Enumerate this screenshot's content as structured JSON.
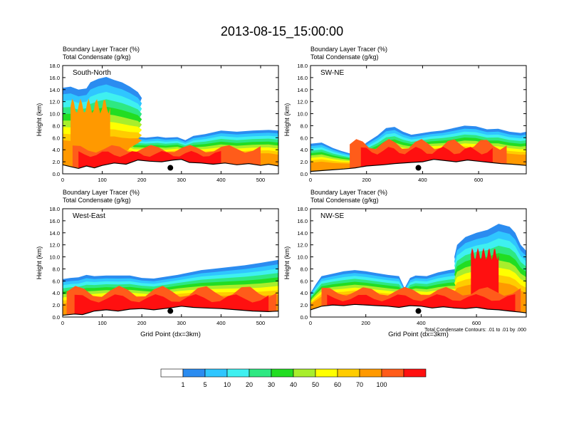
{
  "figure": {
    "title": "2013-08-15_15:00:00",
    "footnote": "Total Condensate Contours: .01 to .01 by .000"
  },
  "colors": {
    "levels": [
      "#ffffff",
      "#2b8cf0",
      "#2fc6ff",
      "#3ff0f0",
      "#2ee882",
      "#22dd22",
      "#a8ee2c",
      "#ffff00",
      "#ffcc00",
      "#ff9900",
      "#ff5c1a",
      "#ff1010"
    ],
    "terrain": "#000000",
    "outline": "#000000"
  },
  "colorbar": {
    "labels": [
      "1",
      "5",
      "10",
      "20",
      "30",
      "40",
      "50",
      "60",
      "70",
      "100"
    ]
  },
  "chart_data": [
    {
      "type": "heatmap",
      "panel_label": "South-North",
      "subtitle1": "Boundary Layer Tracer   (%)",
      "subtitle2": "Total Condensate   (g/kg)",
      "xlabel": "",
      "ylabel": "Height (km)",
      "xlim": [
        0,
        545
      ],
      "ylim": [
        0,
        18
      ],
      "xticks": [
        "0",
        "100",
        "200",
        "300",
        "400",
        "500"
      ],
      "xtick_values": [
        0,
        100,
        200,
        300,
        400,
        500
      ],
      "yticks": [
        "0.0",
        "2.0",
        "4.0",
        "6.0",
        "8.0",
        "10.0",
        "12.0",
        "14.0",
        "16.0",
        "18.0"
      ],
      "marker": {
        "x": 272,
        "y": 1.0
      },
      "terrain": [
        [
          0,
          1.5
        ],
        [
          20,
          1.2
        ],
        [
          40,
          0.9
        ],
        [
          60,
          1.3
        ],
        [
          80,
          1.0
        ],
        [
          100,
          1.4
        ],
        [
          130,
          1.8
        ],
        [
          160,
          1.6
        ],
        [
          190,
          2.3
        ],
        [
          220,
          2.1
        ],
        [
          250,
          2.0
        ],
        [
          280,
          2.3
        ],
        [
          300,
          2.4
        ],
        [
          320,
          1.9
        ],
        [
          350,
          1.8
        ],
        [
          380,
          1.6
        ],
        [
          410,
          1.8
        ],
        [
          440,
          1.5
        ],
        [
          470,
          1.7
        ],
        [
          500,
          1.4
        ],
        [
          520,
          1.6
        ],
        [
          545,
          1.3
        ]
      ],
      "top": [
        [
          0,
          14.3
        ],
        [
          20,
          14.5
        ],
        [
          40,
          14.0
        ],
        [
          60,
          14.2
        ],
        [
          70,
          15.2
        ],
        [
          90,
          15.8
        ],
        [
          110,
          16.1
        ],
        [
          130,
          15.6
        ],
        [
          150,
          15.2
        ],
        [
          170,
          14.5
        ],
        [
          190,
          13.6
        ],
        [
          200,
          12.6
        ],
        [
          190,
          11.0
        ],
        [
          170,
          9.6
        ],
        [
          160,
          7.8
        ],
        [
          180,
          6.2
        ],
        [
          210,
          6.0
        ],
        [
          240,
          6.2
        ],
        [
          260,
          6.0
        ],
        [
          290,
          6.1
        ],
        [
          310,
          5.6
        ],
        [
          330,
          6.3
        ],
        [
          360,
          6.6
        ],
        [
          400,
          7.2
        ],
        [
          440,
          7.0
        ],
        [
          480,
          7.2
        ],
        [
          520,
          7.3
        ],
        [
          545,
          7.2
        ]
      ],
      "cores": [
        {
          "x": [
            20,
            120
          ],
          "top": [
            10,
            12.5
          ],
          "level": 9
        },
        {
          "x": [
            25,
            500
          ],
          "top": [
            3.5,
            4.8
          ],
          "level": 10
        },
        {
          "x": [
            40,
            400
          ],
          "top": [
            2.8,
            3.8
          ],
          "level": 11
        }
      ]
    },
    {
      "type": "heatmap",
      "panel_label": "SW-NE",
      "subtitle1": "Boundary Layer Tracer   (%)",
      "subtitle2": "Total Condensate   (g/kg)",
      "xlabel": "",
      "ylabel": "Height (km)",
      "xlim": [
        0,
        770
      ],
      "ylim": [
        0,
        18
      ],
      "xticks": [
        "0",
        "200",
        "400",
        "600"
      ],
      "xtick_values": [
        0,
        200,
        400,
        600
      ],
      "yticks": [
        "0.0",
        "2.0",
        "4.0",
        "6.0",
        "8.0",
        "10.0",
        "12.0",
        "14.0",
        "16.0",
        "18.0"
      ],
      "marker": {
        "x": 385,
        "y": 1.0
      },
      "terrain": [
        [
          0,
          0.4
        ],
        [
          60,
          0.6
        ],
        [
          120,
          0.8
        ],
        [
          160,
          1.0
        ],
        [
          200,
          1.3
        ],
        [
          260,
          1.5
        ],
        [
          300,
          1.7
        ],
        [
          360,
          1.9
        ],
        [
          400,
          2.0
        ],
        [
          440,
          2.4
        ],
        [
          480,
          2.2
        ],
        [
          520,
          2.0
        ],
        [
          560,
          2.3
        ],
        [
          600,
          2.1
        ],
        [
          640,
          1.9
        ],
        [
          680,
          1.7
        ],
        [
          720,
          1.6
        ],
        [
          770,
          1.4
        ]
      ],
      "top": [
        [
          0,
          5.0
        ],
        [
          40,
          5.2
        ],
        [
          80,
          4.3
        ],
        [
          110,
          3.8
        ],
        [
          140,
          3.4
        ],
        [
          170,
          4.0
        ],
        [
          200,
          5.2
        ],
        [
          240,
          6.4
        ],
        [
          270,
          7.6
        ],
        [
          300,
          7.8
        ],
        [
          330,
          7.0
        ],
        [
          360,
          6.5
        ],
        [
          390,
          6.7
        ],
        [
          430,
          7.0
        ],
        [
          470,
          7.2
        ],
        [
          510,
          7.6
        ],
        [
          550,
          8.0
        ],
        [
          590,
          7.9
        ],
        [
          630,
          7.4
        ],
        [
          670,
          7.5
        ],
        [
          710,
          7.0
        ],
        [
          750,
          6.8
        ],
        [
          770,
          7.0
        ]
      ],
      "cores": [
        {
          "x": [
            140,
            700
          ],
          "top": [
            4.0,
            5.8
          ],
          "level": 10
        },
        {
          "x": [
            180,
            650
          ],
          "top": [
            3.2,
            4.5
          ],
          "level": 11
        }
      ]
    },
    {
      "type": "heatmap",
      "panel_label": "West-East",
      "subtitle1": "Boundary Layer Tracer   (%)",
      "subtitle2": "Total Condensate   (g/kg)",
      "xlabel": "Grid Point (dx=3km)",
      "ylabel": "Height (km)",
      "xlim": [
        0,
        545
      ],
      "ylim": [
        0,
        18
      ],
      "xticks": [
        "0",
        "100",
        "200",
        "300",
        "400",
        "500"
      ],
      "xtick_values": [
        0,
        100,
        200,
        300,
        400,
        500
      ],
      "yticks": [
        "0.0",
        "2.0",
        "4.0",
        "6.0",
        "8.0",
        "10.0",
        "12.0",
        "14.0",
        "16.0",
        "18.0"
      ],
      "marker": {
        "x": 272,
        "y": 1.0
      },
      "terrain": [
        [
          0,
          0.3
        ],
        [
          30,
          0.5
        ],
        [
          50,
          0.4
        ],
        [
          80,
          1.0
        ],
        [
          110,
          1.2
        ],
        [
          140,
          1.0
        ],
        [
          170,
          1.3
        ],
        [
          200,
          1.4
        ],
        [
          230,
          1.2
        ],
        [
          270,
          1.5
        ],
        [
          300,
          1.8
        ],
        [
          330,
          1.6
        ],
        [
          360,
          1.5
        ],
        [
          400,
          1.4
        ],
        [
          440,
          1.2
        ],
        [
          480,
          1.0
        ],
        [
          520,
          0.9
        ],
        [
          545,
          1.0
        ]
      ],
      "top": [
        [
          0,
          6.3
        ],
        [
          20,
          6.5
        ],
        [
          40,
          6.6
        ],
        [
          60,
          7.0
        ],
        [
          80,
          6.8
        ],
        [
          110,
          6.9
        ],
        [
          140,
          6.9
        ],
        [
          170,
          6.9
        ],
        [
          200,
          6.5
        ],
        [
          230,
          6.4
        ],
        [
          260,
          6.7
        ],
        [
          290,
          7.0
        ],
        [
          320,
          7.4
        ],
        [
          350,
          7.8
        ],
        [
          380,
          8.0
        ],
        [
          420,
          8.3
        ],
        [
          460,
          8.6
        ],
        [
          500,
          9.0
        ],
        [
          545,
          9.5
        ]
      ],
      "cores": [
        {
          "x": [
            10,
            540
          ],
          "top": [
            3.2,
            5.2
          ],
          "level": 10
        },
        {
          "x": [
            30,
            520
          ],
          "top": [
            2.4,
            3.8
          ],
          "level": 11
        }
      ]
    },
    {
      "type": "heatmap",
      "panel_label": "NW-SE",
      "subtitle1": "Boundary Layer Tracer   (%)",
      "subtitle2": "Total Condensate   (g/kg)",
      "xlabel": "Grid Point (dx=3km)",
      "ylabel": "Height (km)",
      "xlim": [
        0,
        780
      ],
      "ylim": [
        0,
        18
      ],
      "xticks": [
        "0",
        "200",
        "400",
        "600"
      ],
      "xtick_values": [
        0,
        200,
        400,
        600
      ],
      "yticks": [
        "0.0",
        "2.0",
        "4.0",
        "6.0",
        "8.0",
        "10.0",
        "12.0",
        "14.0",
        "16.0",
        "18.0"
      ],
      "marker": {
        "x": 390,
        "y": 1.0
      },
      "terrain": [
        [
          0,
          1.2
        ],
        [
          40,
          1.8
        ],
        [
          80,
          2.0
        ],
        [
          120,
          1.9
        ],
        [
          160,
          2.1
        ],
        [
          200,
          2.0
        ],
        [
          240,
          1.9
        ],
        [
          280,
          1.8
        ],
        [
          320,
          1.6
        ],
        [
          360,
          1.9
        ],
        [
          400,
          1.8
        ],
        [
          440,
          1.5
        ],
        [
          480,
          1.7
        ],
        [
          520,
          1.5
        ],
        [
          560,
          1.4
        ],
        [
          600,
          1.6
        ],
        [
          640,
          1.3
        ],
        [
          680,
          1.2
        ],
        [
          720,
          1.0
        ],
        [
          760,
          0.8
        ],
        [
          780,
          0.7
        ]
      ],
      "top": [
        [
          0,
          4.0
        ],
        [
          20,
          5.5
        ],
        [
          40,
          6.8
        ],
        [
          80,
          7.2
        ],
        [
          120,
          7.6
        ],
        [
          160,
          7.8
        ],
        [
          200,
          7.6
        ],
        [
          240,
          7.3
        ],
        [
          280,
          7.0
        ],
        [
          320,
          6.8
        ],
        [
          340,
          4.8
        ],
        [
          360,
          6.5
        ],
        [
          380,
          6.9
        ],
        [
          420,
          6.8
        ],
        [
          460,
          7.4
        ],
        [
          500,
          7.8
        ],
        [
          530,
          8.0
        ],
        [
          520,
          10.0
        ],
        [
          530,
          12.0
        ],
        [
          560,
          13.3
        ],
        [
          600,
          14.0
        ],
        [
          640,
          14.5
        ],
        [
          680,
          15.5
        ],
        [
          720,
          15.0
        ],
        [
          740,
          14.0
        ],
        [
          760,
          12.0
        ],
        [
          780,
          11.0
        ]
      ],
      "cores": [
        {
          "x": [
            580,
            680
          ],
          "top": [
            9.5,
            11.5
          ],
          "level": 11
        },
        {
          "x": [
            40,
            760
          ],
          "top": [
            3.5,
            5.0
          ],
          "level": 10
        },
        {
          "x": [
            60,
            740
          ],
          "top": [
            2.6,
            3.8
          ],
          "level": 11
        }
      ]
    }
  ]
}
